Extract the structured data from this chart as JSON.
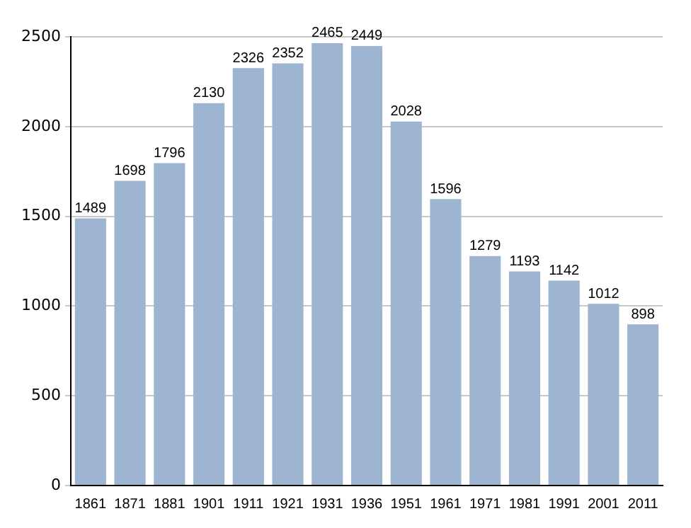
{
  "chart_data": {
    "type": "bar",
    "categories": [
      "1861",
      "1871",
      "1881",
      "1901",
      "1911",
      "1921",
      "1931",
      "1936",
      "1951",
      "1961",
      "1971",
      "1981",
      "1991",
      "2001",
      "2011"
    ],
    "values": [
      1489,
      1698,
      1796,
      2130,
      2326,
      2352,
      2465,
      2449,
      2028,
      1596,
      1279,
      1193,
      1142,
      1012,
      898
    ],
    "color": "#9db5d0",
    "ylim": [
      0,
      2500
    ],
    "yticks": [
      0,
      500,
      1000,
      1500,
      2000,
      2500
    ],
    "grid": "y",
    "data_labels": true
  }
}
